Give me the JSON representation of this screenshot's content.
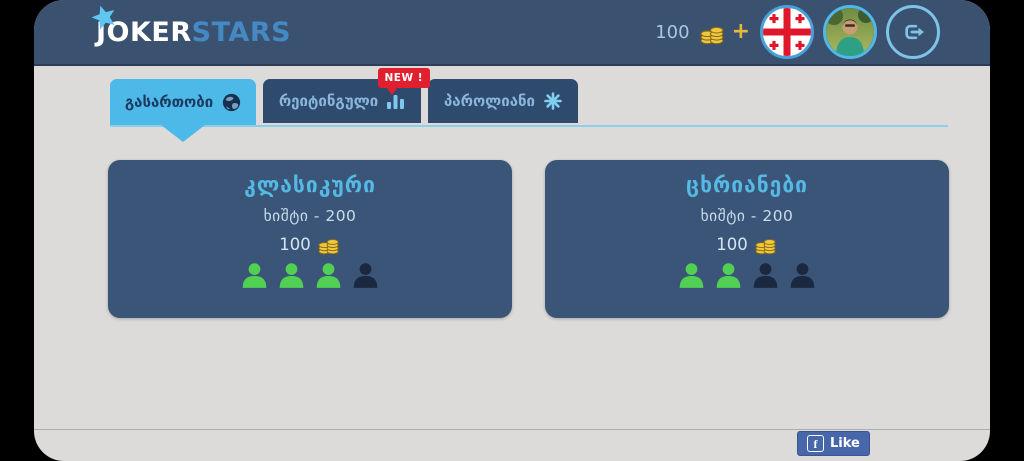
{
  "app": {
    "name_part1": "JOKER",
    "name_part2": "STARS"
  },
  "header": {
    "balance": "100",
    "plus": "+"
  },
  "tabs": [
    {
      "label": "გასართობი",
      "icon": "globe-icon",
      "active": true
    },
    {
      "label": "რეიტინგული",
      "icon": "bar-chart-icon",
      "badge": "NEW !",
      "active": false
    },
    {
      "label": "პაროლიანი",
      "icon": "snowflake-icon",
      "active": false
    }
  ],
  "rooms": [
    {
      "title": "კლასიკური",
      "stake_label": "ხიშტი - 200",
      "bet": "100",
      "seats": [
        "filled",
        "filled",
        "filled",
        "empty"
      ]
    },
    {
      "title": "ცხრიანები",
      "stake_label": "ხიშტი - 200",
      "bet": "100",
      "seats": [
        "filled",
        "filled",
        "empty",
        "empty"
      ]
    }
  ],
  "footer": {
    "like": "Like"
  },
  "icons": {
    "logo_star": "star-icon",
    "balance": "coins-icon",
    "flag": "georgia-flag-icon",
    "logout": "logout-icon",
    "seat": "person-icon",
    "facebook": "facebook-f-icon"
  },
  "colors": {
    "accent_blue": "#4cb9e9",
    "header_bg": "#3b5170",
    "tab_bg": "#2e4a6d",
    "card_bg": "#3a5577",
    "seat_filled": "#52d053",
    "seat_empty": "#1c2840",
    "coin_gold": "#e6b93a",
    "badge_red": "#e0202e",
    "facebook_blue": "#4867aa"
  }
}
